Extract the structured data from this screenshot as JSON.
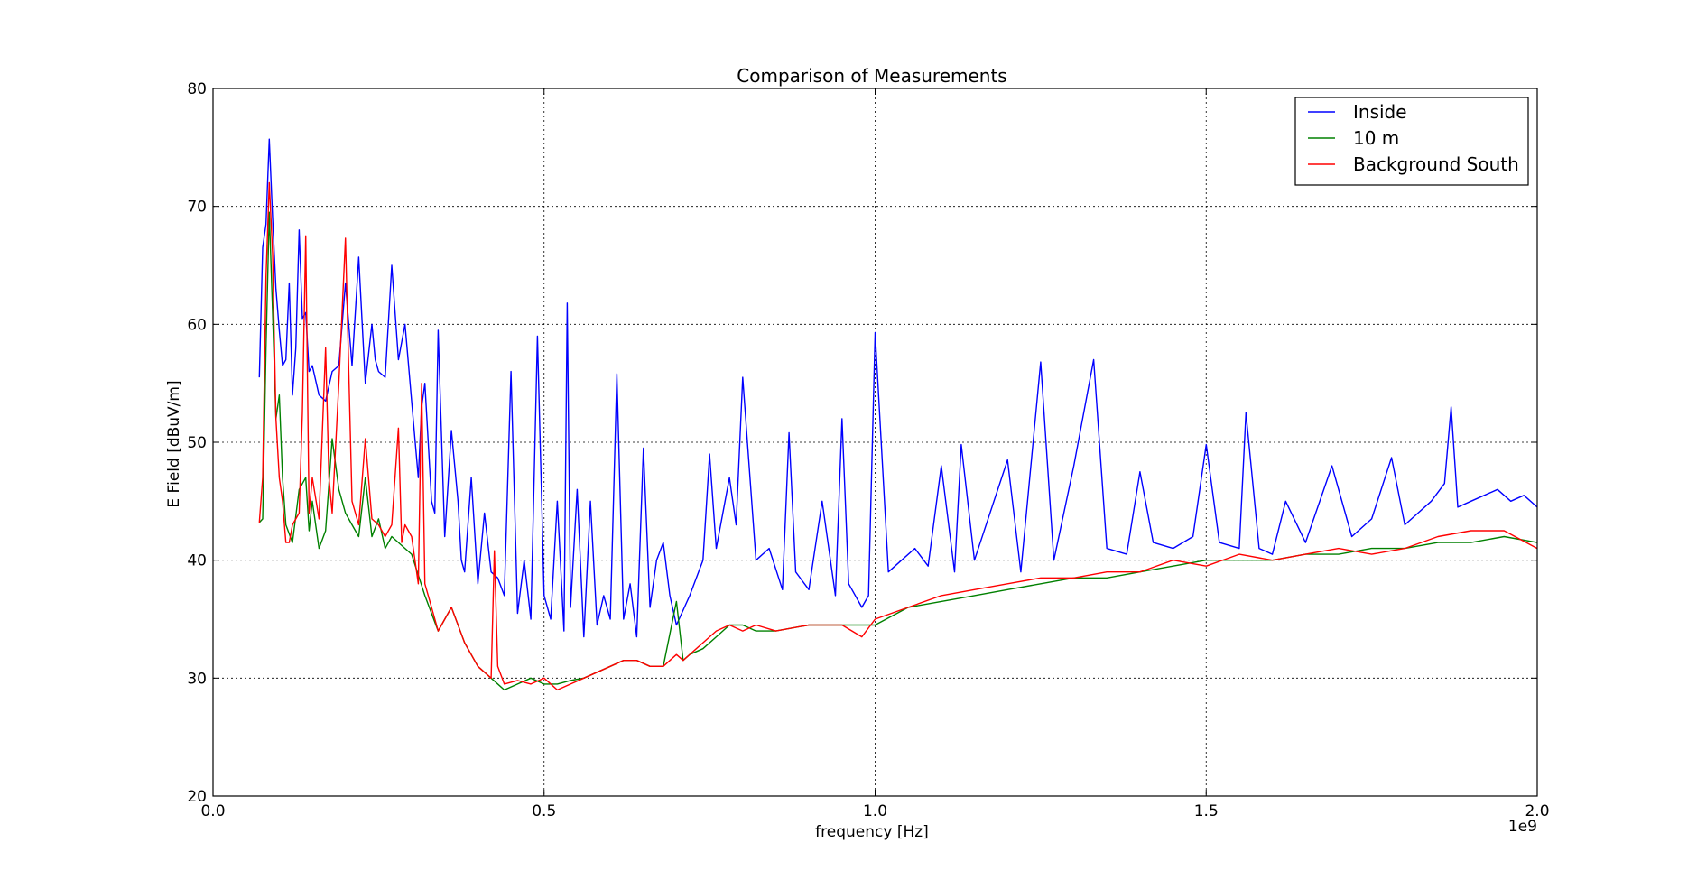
{
  "chart_data": {
    "type": "line",
    "title": "Comparison of Measurements",
    "xlabel": "frequency [Hz]",
    "ylabel": "E Field [dBuV/m]",
    "x_offset_label": "1e9",
    "xlim": [
      0.0,
      2.0
    ],
    "ylim": [
      20,
      80
    ],
    "x_ticks": [
      "0.0",
      "0.5",
      "1.0",
      "1.5",
      "2.0"
    ],
    "y_ticks": [
      "20",
      "30",
      "40",
      "50",
      "60",
      "70",
      "80"
    ],
    "grid": true,
    "legend_position": "top-right",
    "series": [
      {
        "name": "Inside",
        "color": "#0000ff",
        "x": [
          0.07,
          0.075,
          0.08,
          0.085,
          0.09,
          0.095,
          0.1,
          0.105,
          0.11,
          0.115,
          0.12,
          0.125,
          0.13,
          0.135,
          0.14,
          0.145,
          0.15,
          0.16,
          0.17,
          0.18,
          0.19,
          0.2,
          0.21,
          0.22,
          0.23,
          0.24,
          0.245,
          0.25,
          0.26,
          0.27,
          0.28,
          0.29,
          0.3,
          0.31,
          0.315,
          0.32,
          0.33,
          0.335,
          0.34,
          0.35,
          0.36,
          0.37,
          0.375,
          0.38,
          0.39,
          0.4,
          0.41,
          0.42,
          0.43,
          0.44,
          0.45,
          0.46,
          0.47,
          0.48,
          0.49,
          0.5,
          0.51,
          0.52,
          0.53,
          0.535,
          0.54,
          0.55,
          0.56,
          0.57,
          0.58,
          0.59,
          0.6,
          0.61,
          0.62,
          0.63,
          0.64,
          0.65,
          0.66,
          0.67,
          0.68,
          0.69,
          0.7,
          0.72,
          0.74,
          0.75,
          0.76,
          0.78,
          0.79,
          0.8,
          0.82,
          0.84,
          0.86,
          0.87,
          0.88,
          0.9,
          0.92,
          0.94,
          0.95,
          0.96,
          0.98,
          0.99,
          1.0,
          1.02,
          1.04,
          1.06,
          1.08,
          1.1,
          1.12,
          1.13,
          1.15,
          1.2,
          1.22,
          1.25,
          1.27,
          1.3,
          1.33,
          1.35,
          1.38,
          1.4,
          1.42,
          1.45,
          1.48,
          1.5,
          1.52,
          1.55,
          1.56,
          1.58,
          1.6,
          1.62,
          1.65,
          1.69,
          1.72,
          1.75,
          1.78,
          1.8,
          1.82,
          1.84,
          1.86,
          1.87,
          1.88,
          1.9,
          1.92,
          1.94,
          1.96,
          1.98,
          2.0
        ],
        "y": [
          55.5,
          66.5,
          68.5,
          75.7,
          69,
          63,
          59.5,
          56.5,
          57,
          63.5,
          54,
          58,
          68,
          60.5,
          61,
          56,
          56.5,
          54,
          53.5,
          56,
          56.5,
          63.5,
          56.5,
          65.7,
          55,
          60,
          57,
          56,
          55.5,
          65,
          57,
          60,
          53.5,
          47,
          53,
          55,
          45,
          44,
          59.5,
          42,
          51,
          45,
          40,
          39,
          47,
          38,
          44,
          39,
          38.5,
          37,
          56,
          35.5,
          40,
          35,
          59,
          37,
          35,
          45,
          34,
          61.8,
          36,
          46,
          33.5,
          45,
          34.5,
          37,
          35,
          55.8,
          35,
          38,
          33.5,
          49.5,
          36,
          40,
          41.5,
          37,
          34.5,
          37,
          40,
          49,
          41,
          47,
          43,
          55.5,
          40,
          41,
          37.5,
          50.8,
          39,
          37.5,
          45,
          37,
          52,
          38,
          36,
          37,
          59.3,
          39,
          40,
          41,
          39.5,
          48,
          39,
          49.8,
          40,
          48.5,
          39,
          56.8,
          40,
          48,
          57,
          41,
          40.5,
          47.5,
          41.5,
          41,
          42,
          49.8,
          41.5,
          41,
          52.5,
          41,
          40.5,
          45,
          41.5,
          48,
          42,
          43.5,
          48.7,
          43,
          44,
          45,
          46.5,
          53,
          44.5,
          45,
          45.5,
          46,
          45,
          45.5,
          44.5
        ]
      },
      {
        "name": "10 m",
        "color": "#008000",
        "x": [
          0.07,
          0.075,
          0.08,
          0.085,
          0.09,
          0.095,
          0.1,
          0.105,
          0.11,
          0.12,
          0.13,
          0.14,
          0.145,
          0.15,
          0.16,
          0.17,
          0.18,
          0.19,
          0.2,
          0.21,
          0.22,
          0.23,
          0.24,
          0.25,
          0.26,
          0.27,
          0.28,
          0.3,
          0.32,
          0.34,
          0.36,
          0.38,
          0.4,
          0.42,
          0.44,
          0.46,
          0.48,
          0.5,
          0.52,
          0.54,
          0.56,
          0.58,
          0.6,
          0.62,
          0.64,
          0.66,
          0.68,
          0.7,
          0.71,
          0.72,
          0.74,
          0.76,
          0.78,
          0.8,
          0.82,
          0.85,
          0.9,
          0.95,
          1.0,
          1.05,
          1.1,
          1.15,
          1.2,
          1.25,
          1.3,
          1.35,
          1.4,
          1.45,
          1.5,
          1.55,
          1.6,
          1.65,
          1.7,
          1.75,
          1.8,
          1.85,
          1.9,
          1.95,
          2.0
        ],
        "y": [
          43.2,
          43.5,
          58,
          69.5,
          61,
          52,
          54,
          47,
          43,
          41.5,
          46,
          47,
          42.5,
          45,
          41,
          42.5,
          50.3,
          46,
          44,
          43,
          42,
          47,
          42,
          43.5,
          41,
          42,
          41.5,
          40.5,
          37,
          34,
          36,
          33,
          31,
          30,
          29,
          29.5,
          30,
          29.5,
          29.5,
          29.8,
          30,
          30.5,
          31,
          31.5,
          31.5,
          31,
          31,
          36.5,
          31.5,
          32,
          32.5,
          33.5,
          34.5,
          34.5,
          34,
          34,
          34.5,
          34.5,
          34.5,
          36,
          36.5,
          37,
          37.5,
          38,
          38.5,
          38.5,
          39,
          39.5,
          40,
          40,
          40,
          40.5,
          40.5,
          41,
          41,
          41.5,
          41.5,
          42,
          41.5
        ]
      },
      {
        "name": "Background South",
        "color": "#ff0000",
        "x": [
          0.07,
          0.075,
          0.08,
          0.085,
          0.09,
          0.095,
          0.1,
          0.105,
          0.11,
          0.115,
          0.12,
          0.13,
          0.135,
          0.14,
          0.145,
          0.15,
          0.16,
          0.17,
          0.175,
          0.18,
          0.19,
          0.2,
          0.21,
          0.22,
          0.23,
          0.24,
          0.25,
          0.26,
          0.27,
          0.28,
          0.285,
          0.29,
          0.3,
          0.31,
          0.315,
          0.32,
          0.33,
          0.34,
          0.36,
          0.38,
          0.4,
          0.42,
          0.425,
          0.43,
          0.44,
          0.46,
          0.48,
          0.5,
          0.52,
          0.54,
          0.56,
          0.58,
          0.6,
          0.62,
          0.64,
          0.66,
          0.68,
          0.7,
          0.71,
          0.72,
          0.74,
          0.76,
          0.78,
          0.8,
          0.82,
          0.85,
          0.9,
          0.95,
          0.98,
          1.0,
          1.05,
          1.1,
          1.15,
          1.2,
          1.25,
          1.3,
          1.35,
          1.4,
          1.45,
          1.5,
          1.55,
          1.6,
          1.65,
          1.7,
          1.75,
          1.8,
          1.85,
          1.9,
          1.95,
          2.0
        ],
        "y": [
          43.2,
          47,
          64,
          72,
          66,
          52,
          47,
          45,
          41.5,
          41.5,
          43,
          44,
          52.5,
          67.5,
          44,
          47,
          43.5,
          58,
          47,
          44,
          55,
          67.3,
          45,
          43,
          50.3,
          43.5,
          43,
          42,
          43,
          51.2,
          41.5,
          43,
          42,
          38,
          55,
          38,
          36,
          34,
          36,
          33,
          31,
          30,
          40.8,
          31,
          29.5,
          29.8,
          29.5,
          30,
          29,
          29.5,
          30,
          30.5,
          31,
          31.5,
          31.5,
          31,
          31,
          32,
          31.5,
          32,
          33,
          34,
          34.5,
          34,
          34.5,
          34,
          34.5,
          34.5,
          33.5,
          35,
          36,
          37,
          37.5,
          38,
          38.5,
          38.5,
          39,
          39,
          40,
          39.5,
          40.5,
          40,
          40.5,
          41,
          40.5,
          41,
          42,
          42.5,
          42.5,
          41
        ]
      }
    ]
  }
}
